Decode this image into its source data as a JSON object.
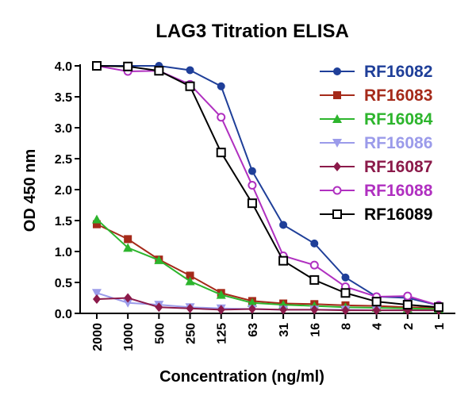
{
  "chart_data": {
    "type": "line",
    "title": "LAG3 Titration ELISA",
    "xlabel": "Concentration (ng/ml)",
    "ylabel": "OD 450 nm",
    "x_scale": "categorical",
    "categories": [
      "2000",
      "1000",
      "500",
      "250",
      "125",
      "63",
      "31",
      "16",
      "8",
      "4",
      "2",
      "1"
    ],
    "ylim": [
      0,
      4.0
    ],
    "y_ticks": [
      "0.0",
      "0.5",
      "1.0",
      "1.5",
      "2.0",
      "2.5",
      "3.0",
      "3.5",
      "4.0"
    ],
    "grid": false,
    "legend_position": "right",
    "series": [
      {
        "name": "RF16082",
        "color": "#1f3f99",
        "marker": "circle-filled",
        "values": [
          4.0,
          4.0,
          4.0,
          3.93,
          3.67,
          2.3,
          1.43,
          1.13,
          0.58,
          0.27,
          0.25,
          0.13
        ]
      },
      {
        "name": "RF16083",
        "color": "#a52a1a",
        "marker": "square-filled",
        "values": [
          1.44,
          1.2,
          0.87,
          0.61,
          0.33,
          0.2,
          0.16,
          0.15,
          0.13,
          0.12,
          0.1,
          0.09
        ]
      },
      {
        "name": "RF16084",
        "color": "#2db52d",
        "marker": "triangle-up",
        "values": [
          1.52,
          1.06,
          0.86,
          0.52,
          0.3,
          0.17,
          0.14,
          0.12,
          0.1,
          0.09,
          0.08,
          0.07
        ]
      },
      {
        "name": "RF16086",
        "color": "#9b9bea",
        "marker": "triangle-down",
        "values": [
          0.33,
          0.17,
          0.14,
          0.1,
          0.08,
          0.07,
          0.06,
          0.06,
          0.06,
          0.05,
          0.05,
          0.05
        ]
      },
      {
        "name": "RF16087",
        "color": "#8b1a4a",
        "marker": "diamond-filled",
        "values": [
          0.23,
          0.25,
          0.1,
          0.08,
          0.06,
          0.07,
          0.06,
          0.06,
          0.05,
          0.05,
          0.05,
          0.05
        ]
      },
      {
        "name": "RF16088",
        "color": "#b030c0",
        "marker": "circle-open",
        "values": [
          4.0,
          3.91,
          3.92,
          3.7,
          3.17,
          2.07,
          0.93,
          0.78,
          0.43,
          0.27,
          0.28,
          0.13
        ]
      },
      {
        "name": "RF16089",
        "color": "#000000",
        "marker": "square-open",
        "values": [
          4.0,
          3.99,
          3.92,
          3.67,
          2.6,
          1.78,
          0.85,
          0.54,
          0.33,
          0.19,
          0.14,
          0.1
        ]
      }
    ]
  }
}
